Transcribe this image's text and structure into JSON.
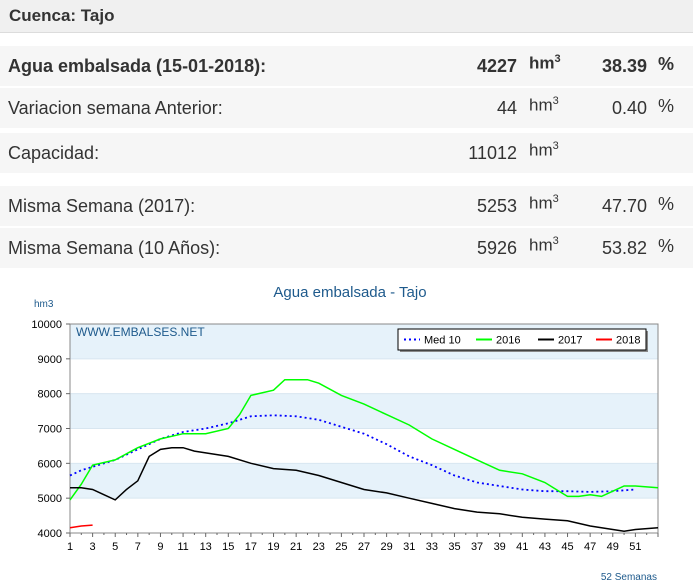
{
  "header": {
    "title": "Cuenca: Tajo"
  },
  "rows": [
    {
      "label": "Agua embalsada (15-01-2018):",
      "value": "4227",
      "unit": "hm",
      "unit_sup": "3",
      "pct": "38.39",
      "pct_sign": "%"
    },
    {
      "label": "Variacion semana Anterior:",
      "value": "44",
      "unit": "hm",
      "unit_sup": "3",
      "pct": "0.40",
      "pct_sign": "%"
    },
    {
      "label": "Capacidad:",
      "value": "11012",
      "unit": "hm",
      "unit_sup": "3",
      "pct": "",
      "pct_sign": ""
    },
    {
      "label": "Misma Semana (2017):",
      "value": "5253",
      "unit": "hm",
      "unit_sup": "3",
      "pct": "47.70",
      "pct_sign": "%"
    },
    {
      "label": "Misma Semana (10 Años):",
      "value": "5926",
      "unit": "hm",
      "unit_sup": "3",
      "pct": "53.82",
      "pct_sign": "%"
    }
  ],
  "chart_data": {
    "type": "line",
    "title": "Agua embalsada - Tajo",
    "ylabel": "hm3",
    "xlabel": "52 Semanas",
    "watermark": "WWW.EMBALSES.NET",
    "ylim": [
      4000,
      10000
    ],
    "xlim": [
      1,
      53
    ],
    "yticks": [
      4000,
      5000,
      6000,
      7000,
      8000,
      9000,
      10000
    ],
    "xticks": [
      1,
      3,
      5,
      7,
      9,
      11,
      13,
      15,
      17,
      19,
      21,
      23,
      25,
      27,
      29,
      31,
      33,
      35,
      37,
      39,
      41,
      43,
      45,
      47,
      49,
      51
    ],
    "grid": "horizontal bands",
    "legend_position": "top-right",
    "series": [
      {
        "name": "Med 10",
        "color": "#0000ff",
        "style": "dotted",
        "x": [
          1,
          2,
          3,
          5,
          7,
          9,
          11,
          13,
          15,
          17,
          19,
          21,
          23,
          25,
          27,
          29,
          31,
          33,
          35,
          37,
          39,
          41,
          43,
          45,
          47,
          49,
          51
        ],
        "values": [
          5650,
          5800,
          5900,
          6100,
          6400,
          6700,
          6900,
          7000,
          7150,
          7350,
          7380,
          7350,
          7250,
          7050,
          6850,
          6550,
          6200,
          5950,
          5650,
          5450,
          5350,
          5250,
          5200,
          5200,
          5180,
          5200,
          5250
        ]
      },
      {
        "name": "2016",
        "color": "#00ff00",
        "style": "solid",
        "x": [
          1,
          2,
          3,
          5,
          7,
          9,
          11,
          13,
          15,
          16,
          17,
          19,
          20,
          21,
          22,
          23,
          25,
          27,
          29,
          31,
          33,
          35,
          37,
          39,
          41,
          43,
          44,
          45,
          46,
          47,
          48,
          49,
          50,
          51,
          53
        ],
        "values": [
          4950,
          5400,
          5950,
          6100,
          6450,
          6700,
          6850,
          6850,
          7000,
          7400,
          7950,
          8100,
          8400,
          8400,
          8400,
          8300,
          7950,
          7700,
          7400,
          7100,
          6700,
          6400,
          6100,
          5800,
          5700,
          5450,
          5250,
          5050,
          5050,
          5100,
          5050,
          5200,
          5350,
          5350,
          5300
        ]
      },
      {
        "name": "2017",
        "color": "#000000",
        "style": "solid",
        "x": [
          1,
          2,
          3,
          4,
          5,
          6,
          7,
          8,
          9,
          10,
          11,
          12,
          13,
          14,
          15,
          17,
          19,
          21,
          23,
          25,
          27,
          29,
          31,
          33,
          35,
          37,
          39,
          41,
          43,
          45,
          47,
          49,
          50,
          51,
          53
        ],
        "values": [
          5300,
          5300,
          5250,
          5100,
          4950,
          5250,
          5500,
          6200,
          6400,
          6450,
          6450,
          6350,
          6300,
          6250,
          6200,
          6000,
          5850,
          5800,
          5650,
          5450,
          5250,
          5150,
          5000,
          4850,
          4700,
          4600,
          4550,
          4450,
          4400,
          4350,
          4200,
          4100,
          4050,
          4100,
          4150
        ]
      },
      {
        "name": "2018",
        "color": "#ff0000",
        "style": "solid",
        "x": [
          1,
          2,
          3
        ],
        "values": [
          4150,
          4200,
          4227
        ]
      }
    ]
  }
}
